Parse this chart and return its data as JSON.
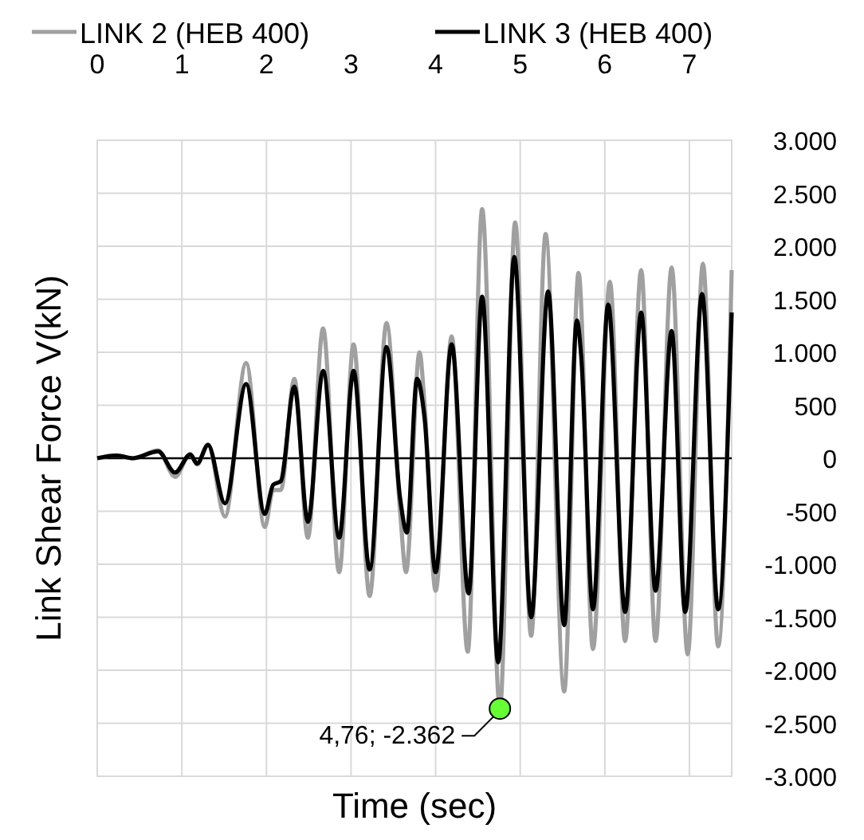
{
  "chart_data": {
    "type": "line",
    "xlabel": "Time (sec)",
    "ylabel": "Link Shear Force  V(kN)",
    "xlim": [
      0,
      7.5
    ],
    "xticks": [
      0,
      1,
      2,
      3,
      4,
      5,
      6,
      7
    ],
    "ylim": [
      -3000,
      3000
    ],
    "yticks": [
      {
        "value": -3000,
        "label": "-3.000"
      },
      {
        "value": -2500,
        "label": "-2.500"
      },
      {
        "value": -2000,
        "label": "-2.000"
      },
      {
        "value": -1500,
        "label": "-1.500"
      },
      {
        "value": -1000,
        "label": "-1.000"
      },
      -500,
      0,
      500,
      {
        "value": 1000,
        "label": "1.000"
      },
      {
        "value": 1500,
        "label": "1.500"
      },
      {
        "value": 2000,
        "label": "2.000"
      },
      {
        "value": 2500,
        "label": "2.500"
      },
      {
        "value": 3000,
        "label": "3.000"
      }
    ],
    "grid": true,
    "legend": "top",
    "marker": "none",
    "line_style": "solid",
    "ref_lines": [
      {
        "axis": "y",
        "value": 0,
        "color": "#000000"
      }
    ],
    "annotations": [
      {
        "text": "4,76; -2.362",
        "x": 4.76,
        "y": -2362
      }
    ],
    "series": [
      {
        "name": "LINK 2 (HEB 400)",
        "color": "#a0a0a0",
        "x": [
          0,
          0.23,
          0.42,
          0.72,
          0.92,
          1.1,
          1.18,
          1.31,
          1.51,
          1.76,
          1.98,
          2.08,
          2.17,
          2.33,
          2.49,
          2.67,
          2.86,
          3.03,
          3.22,
          3.42,
          3.58,
          3.65,
          3.81,
          3.87,
          4.0,
          4.19,
          4.38,
          4.55,
          4.76,
          4.94,
          5.13,
          5.3,
          5.52,
          5.69,
          5.86,
          6.06,
          6.24,
          6.43,
          6.6,
          6.79,
          6.98,
          7.16,
          7.34,
          7.5
        ],
        "values": [
          0,
          25,
          0,
          75,
          -175,
          40,
          -60,
          130,
          -550,
          900,
          -650,
          -300,
          -300,
          750,
          -750,
          1225,
          -1075,
          1075,
          -1300,
          1275,
          -500,
          -1075,
          1000,
          500,
          -1250,
          1150,
          -1825,
          2350,
          -2362,
          2225,
          -1675,
          2115,
          -2200,
          1750,
          -1800,
          1665,
          -1725,
          1775,
          -1725,
          1800,
          -1850,
          1835,
          -1775,
          1775
        ]
      },
      {
        "name": "LINK 3 (HEB 400)",
        "color": "#000000",
        "x": [
          0,
          0.23,
          0.42,
          0.72,
          0.92,
          1.1,
          1.18,
          1.31,
          1.51,
          1.76,
          1.98,
          2.08,
          2.17,
          2.33,
          2.49,
          2.67,
          2.86,
          3.03,
          3.22,
          3.42,
          3.58,
          3.66,
          3.78,
          3.87,
          4.0,
          4.19,
          4.39,
          4.55,
          4.74,
          4.93,
          5.13,
          5.33,
          5.52,
          5.67,
          5.72,
          5.86,
          6.04,
          6.24,
          6.43,
          6.6,
          6.79,
          6.95,
          7.15,
          7.34,
          7.5
        ],
        "values": [
          0,
          25,
          0,
          65,
          -135,
          35,
          -50,
          125,
          -425,
          700,
          -525,
          -250,
          -215,
          675,
          -600,
          825,
          -750,
          825,
          -1050,
          1050,
          -375,
          -700,
          750,
          375,
          -1075,
          1075,
          -1275,
          1525,
          -1925,
          1900,
          -1500,
          1575,
          -1575,
          1300,
          975,
          -1425,
          1450,
          -1450,
          1375,
          -1250,
          1200,
          -1450,
          1550,
          -1425,
          1375
        ]
      }
    ]
  }
}
